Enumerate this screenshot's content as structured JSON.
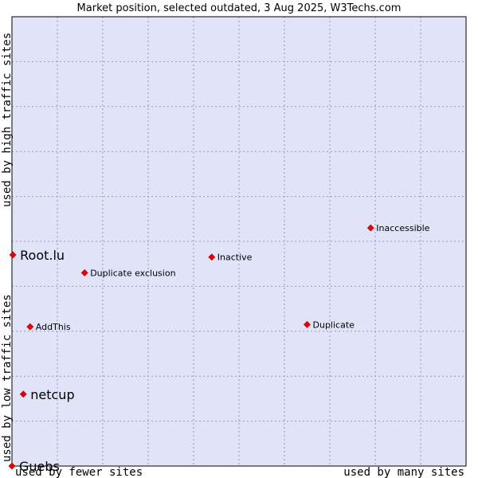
{
  "chart_data": {
    "type": "scatter",
    "title": "Market position, selected outdated, 3 Aug 2025, W3Techs.com",
    "xlabel_low": "used by fewer sites",
    "xlabel_high": "used by many sites",
    "ylabel_low": "used by low traffic sites",
    "ylabel_high": "used by high traffic sites",
    "xlim": [
      0,
      10
    ],
    "ylim": [
      0,
      10
    ],
    "grid": true,
    "colors": {
      "plot_background": "#e1e3f8",
      "grid": "#9a9ab8",
      "frame": "#000000",
      "point": "#ee0000"
    },
    "points": [
      {
        "label": "Root.lu",
        "x": 0.02,
        "y": 4.7,
        "emphasis": true
      },
      {
        "label": "netcup",
        "x": 0.25,
        "y": 1.6,
        "emphasis": true
      },
      {
        "label": "Guebs",
        "x": 0.0,
        "y": 0.0,
        "emphasis": true
      },
      {
        "label": "Inaccessible",
        "x": 7.9,
        "y": 5.3,
        "emphasis": false
      },
      {
        "label": "Inactive",
        "x": 4.4,
        "y": 4.65,
        "emphasis": false
      },
      {
        "label": "Duplicate exclusion",
        "x": 1.6,
        "y": 4.3,
        "emphasis": false
      },
      {
        "label": "AddThis",
        "x": 0.4,
        "y": 3.1,
        "emphasis": false
      },
      {
        "label": "Duplicate",
        "x": 6.5,
        "y": 3.15,
        "emphasis": false
      }
    ]
  }
}
